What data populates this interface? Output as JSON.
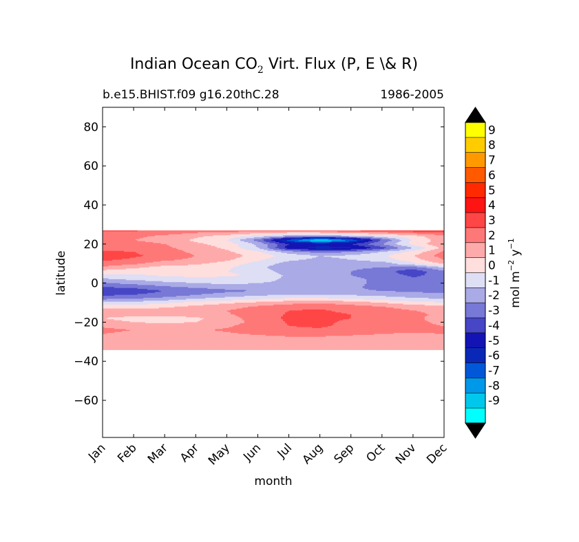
{
  "chart_data": {
    "type": "heatmap",
    "title": {
      "prefix": "Indian Ocean CO",
      "subscript": "2",
      "suffix": " Virt. Flux (P, E \\& R)"
    },
    "subtitle_left": "b.e15.BHIST.f09 g16.20thC.28",
    "subtitle_right": "1986-2005",
    "xlabel": "month",
    "ylabel": "latitude",
    "x_ticks": [
      "Jan",
      "Feb",
      "Mar",
      "Apr",
      "May",
      "Jun",
      "Jul",
      "Aug",
      "Sep",
      "Oct",
      "Nov",
      "Dec"
    ],
    "y_ticks": [
      80,
      60,
      40,
      20,
      0,
      -20,
      -40,
      -60
    ],
    "y_tick_labels": [
      "80",
      "60",
      "40",
      "20",
      "0",
      "−20",
      "−40",
      "−60"
    ],
    "ylim": [
      -79,
      90
    ],
    "xlim": [
      0,
      11
    ],
    "data_lat_range": [
      -34,
      27
    ],
    "colorbar": {
      "label": "mol m⁻² y⁻¹",
      "label_parts": {
        "a": "mol m",
        "sup1": "−2",
        "b": " y",
        "sup2": "−1"
      },
      "level_labels": [
        "9",
        "8",
        "7",
        "6",
        "5",
        "4",
        "3",
        "2",
        "1",
        "0",
        "-1",
        "-2",
        "-3",
        "-4",
        "-5",
        "-6",
        "-7",
        "-8",
        "-9"
      ],
      "colors": [
        "#ffff00",
        "#ffcc00",
        "#ff9900",
        "#ff5a00",
        "#ff2a00",
        "#ff1414",
        "#ff4646",
        "#ff7878",
        "#ffaaaa",
        "#ffdede",
        "#dedef5",
        "#aaaae6",
        "#7878d6",
        "#4646c6",
        "#1414b4",
        "#0a28b8",
        "#0058d8",
        "#0098e8",
        "#00c8ec",
        "#00ffff"
      ],
      "extend_colors": {
        "over": "#000000",
        "under": "#000000"
      }
    },
    "lat_rows": [
      27,
      24,
      22,
      20,
      18,
      16,
      14,
      12,
      10,
      8,
      6,
      4,
      2,
      0,
      -2,
      -4,
      -6,
      -8,
      -10,
      -12,
      -14,
      -16,
      -18,
      -20,
      -22,
      -24,
      -26,
      -28,
      -30,
      -32,
      -34
    ],
    "values": [
      [
        3.2,
        3.1,
        2.9,
        2.6,
        2.6,
        2.6,
        2.8,
        3.0,
        3.3,
        3.5,
        3.8,
        3.6
      ],
      [
        2.4,
        2.2,
        1.8,
        1.2,
        0.6,
        -0.4,
        -1.6,
        -1.8,
        -1.2,
        -0.4,
        0.6,
        1.8
      ],
      [
        2.3,
        2.0,
        1.6,
        0.8,
        0.0,
        -2.5,
        -6.5,
        -9.5,
        -7.0,
        -3.0,
        0.2,
        1.5
      ],
      [
        2.6,
        2.4,
        2.0,
        1.2,
        0.6,
        -1.2,
        -4.0,
        -4.5,
        -4.0,
        -2.0,
        0.4,
        1.8
      ],
      [
        2.6,
        2.5,
        2.2,
        1.6,
        0.8,
        -1.0,
        -4.5,
        -5.5,
        -5.2,
        -3.5,
        -1.0,
        1.4
      ],
      [
        3.2,
        3.0,
        2.4,
        1.8,
        1.2,
        0.2,
        -1.5,
        -2.5,
        -2.0,
        -1.0,
        0.3,
        2.2
      ],
      [
        3.5,
        3.2,
        2.6,
        2.0,
        1.5,
        0.6,
        -0.4,
        -1.0,
        -0.8,
        -0.2,
        1.0,
        2.5
      ],
      [
        3.2,
        2.8,
        2.2,
        1.8,
        1.2,
        0.2,
        -0.8,
        -1.2,
        -1.0,
        -0.5,
        0.6,
        2.0
      ],
      [
        2.6,
        2.2,
        1.5,
        1.2,
        0.6,
        -0.4,
        -1.4,
        -1.6,
        -1.6,
        -1.5,
        -0.2,
        1.2
      ],
      [
        1.8,
        1.2,
        0.6,
        0.5,
        0.2,
        -0.8,
        -1.6,
        -1.8,
        -1.8,
        -2.0,
        -2.5,
        -1.0
      ],
      [
        0.6,
        0.4,
        0.2,
        0.2,
        0.0,
        -0.5,
        -1.5,
        -1.8,
        -2.0,
        -2.6,
        -3.6,
        -2.2
      ],
      [
        -0.2,
        -0.2,
        0.2,
        0.4,
        0.2,
        -0.2,
        -1.2,
        -1.6,
        -2.0,
        -2.5,
        -3.2,
        -2.6
      ],
      [
        -1.2,
        -0.8,
        -0.6,
        -0.5,
        -0.4,
        -0.6,
        -1.2,
        -1.5,
        -1.8,
        -2.2,
        -2.8,
        -2.6
      ],
      [
        -2.2,
        -1.6,
        -1.2,
        -1.0,
        -0.8,
        -1.0,
        -1.2,
        -1.5,
        -1.8,
        -2.2,
        -2.8,
        -2.8
      ],
      [
        -3.0,
        -2.8,
        -2.2,
        -1.8,
        -1.6,
        -1.4,
        -1.5,
        -1.7,
        -1.9,
        -2.2,
        -2.6,
        -2.7
      ],
      [
        -3.6,
        -3.5,
        -3.0,
        -2.6,
        -2.2,
        -2.0,
        -1.9,
        -1.9,
        -1.9,
        -2.0,
        -2.2,
        -2.2
      ],
      [
        -3.2,
        -3.0,
        -2.6,
        -2.0,
        -1.6,
        -1.2,
        -1.0,
        -1.0,
        -1.1,
        -1.3,
        -1.6,
        -1.8
      ],
      [
        -2.2,
        -2.0,
        -1.6,
        -1.0,
        -0.6,
        -0.2,
        0.2,
        0.2,
        0.0,
        -0.4,
        -0.8,
        -1.0
      ],
      [
        -0.8,
        -0.6,
        -0.2,
        0.4,
        0.8,
        1.2,
        1.6,
        1.8,
        1.5,
        1.0,
        0.4,
        0.0
      ],
      [
        0.6,
        0.6,
        0.8,
        1.2,
        1.6,
        2.1,
        2.6,
        2.8,
        2.4,
        2.0,
        1.6,
        1.2
      ],
      [
        1.4,
        1.4,
        1.4,
        1.6,
        2.0,
        2.5,
        3.0,
        3.1,
        2.8,
        2.4,
        2.0,
        1.8
      ],
      [
        1.6,
        1.4,
        1.3,
        1.6,
        1.9,
        2.5,
        3.1,
        3.2,
        3.0,
        2.6,
        2.2,
        1.8
      ],
      [
        1.0,
        0.6,
        0.5,
        0.8,
        1.6,
        2.4,
        3.2,
        3.3,
        3.0,
        2.6,
        2.2,
        1.6
      ],
      [
        1.4,
        1.0,
        0.8,
        1.0,
        1.6,
        2.3,
        3.1,
        3.2,
        2.8,
        2.4,
        2.2,
        1.8
      ],
      [
        1.9,
        1.6,
        1.5,
        1.6,
        1.9,
        2.4,
        3.0,
        3.1,
        2.8,
        2.4,
        2.2,
        2.0
      ],
      [
        2.2,
        2.0,
        1.9,
        1.9,
        2.1,
        2.4,
        2.8,
        2.9,
        2.6,
        2.3,
        2.2,
        2.2
      ],
      [
        2.0,
        1.8,
        1.8,
        1.8,
        1.9,
        2.1,
        2.4,
        2.4,
        2.2,
        2.0,
        1.9,
        2.0
      ],
      [
        1.4,
        1.6,
        1.6,
        1.6,
        1.6,
        1.7,
        1.8,
        1.8,
        1.7,
        1.6,
        1.6,
        1.6
      ],
      [
        1.2,
        1.3,
        1.3,
        1.3,
        1.3,
        1.3,
        1.4,
        1.4,
        1.3,
        1.3,
        1.3,
        1.3
      ],
      [
        1.1,
        1.1,
        1.1,
        1.1,
        1.1,
        1.1,
        1.2,
        1.2,
        1.1,
        1.1,
        1.1,
        1.1
      ],
      [
        1.0,
        1.0,
        1.0,
        1.0,
        1.0,
        1.0,
        1.0,
        1.0,
        1.0,
        1.0,
        1.0,
        1.0
      ]
    ]
  }
}
